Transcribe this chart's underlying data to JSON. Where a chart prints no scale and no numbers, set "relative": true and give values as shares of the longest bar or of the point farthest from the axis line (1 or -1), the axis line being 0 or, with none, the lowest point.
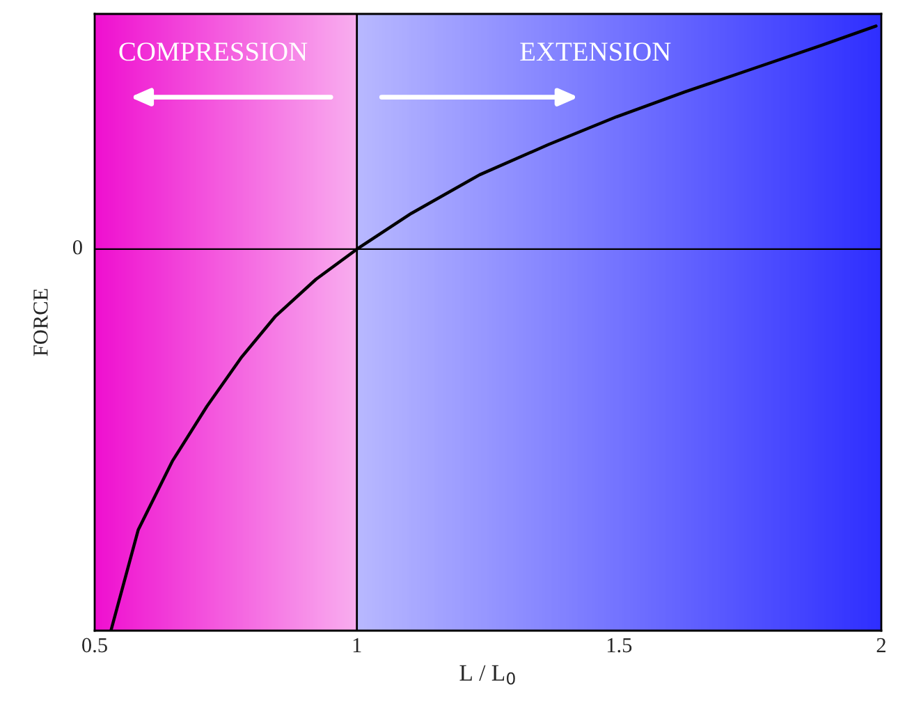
{
  "chart_data": {
    "type": "line",
    "xlabel": "L / L$_{0}$",
    "ylabel": "FORCE",
    "relative": true,
    "x": [
      0.531,
      0.583,
      0.648,
      0.714,
      0.779,
      0.844,
      0.922,
      1.0,
      1.104,
      1.234,
      1.365,
      1.495,
      1.625,
      1.755,
      1.885,
      1.99
    ],
    "series": [
      {
        "color": "#000000",
        "values": [
          -1,
          -0.736,
          -0.556,
          -0.412,
          -0.285,
          -0.177,
          -0.079,
          0,
          0.094,
          0.195,
          0.274,
          0.347,
          0.412,
          0.473,
          0.534,
          0.585
        ]
      }
    ],
    "xlim": [
      0.5,
      2
    ],
    "xticks": [
      0.5,
      1,
      1.5,
      2
    ],
    "ref_lines": [
      {
        "axis": "y",
        "value": 0,
        "label": "0",
        "color": "#000000"
      },
      {
        "axis": "x",
        "value": 1,
        "color": "#000000"
      }
    ],
    "bands": [
      {
        "axis": "x",
        "from": 0.5,
        "to": 1,
        "color": "#f010d0"
      },
      {
        "axis": "x",
        "from": 1,
        "to": 2,
        "color": "#3030ff"
      }
    ],
    "annotations": [
      "COMPRESSION",
      "EXTENSION"
    ],
    "grid": false,
    "legend": false,
    "marker": "none",
    "line_style": "solid"
  }
}
